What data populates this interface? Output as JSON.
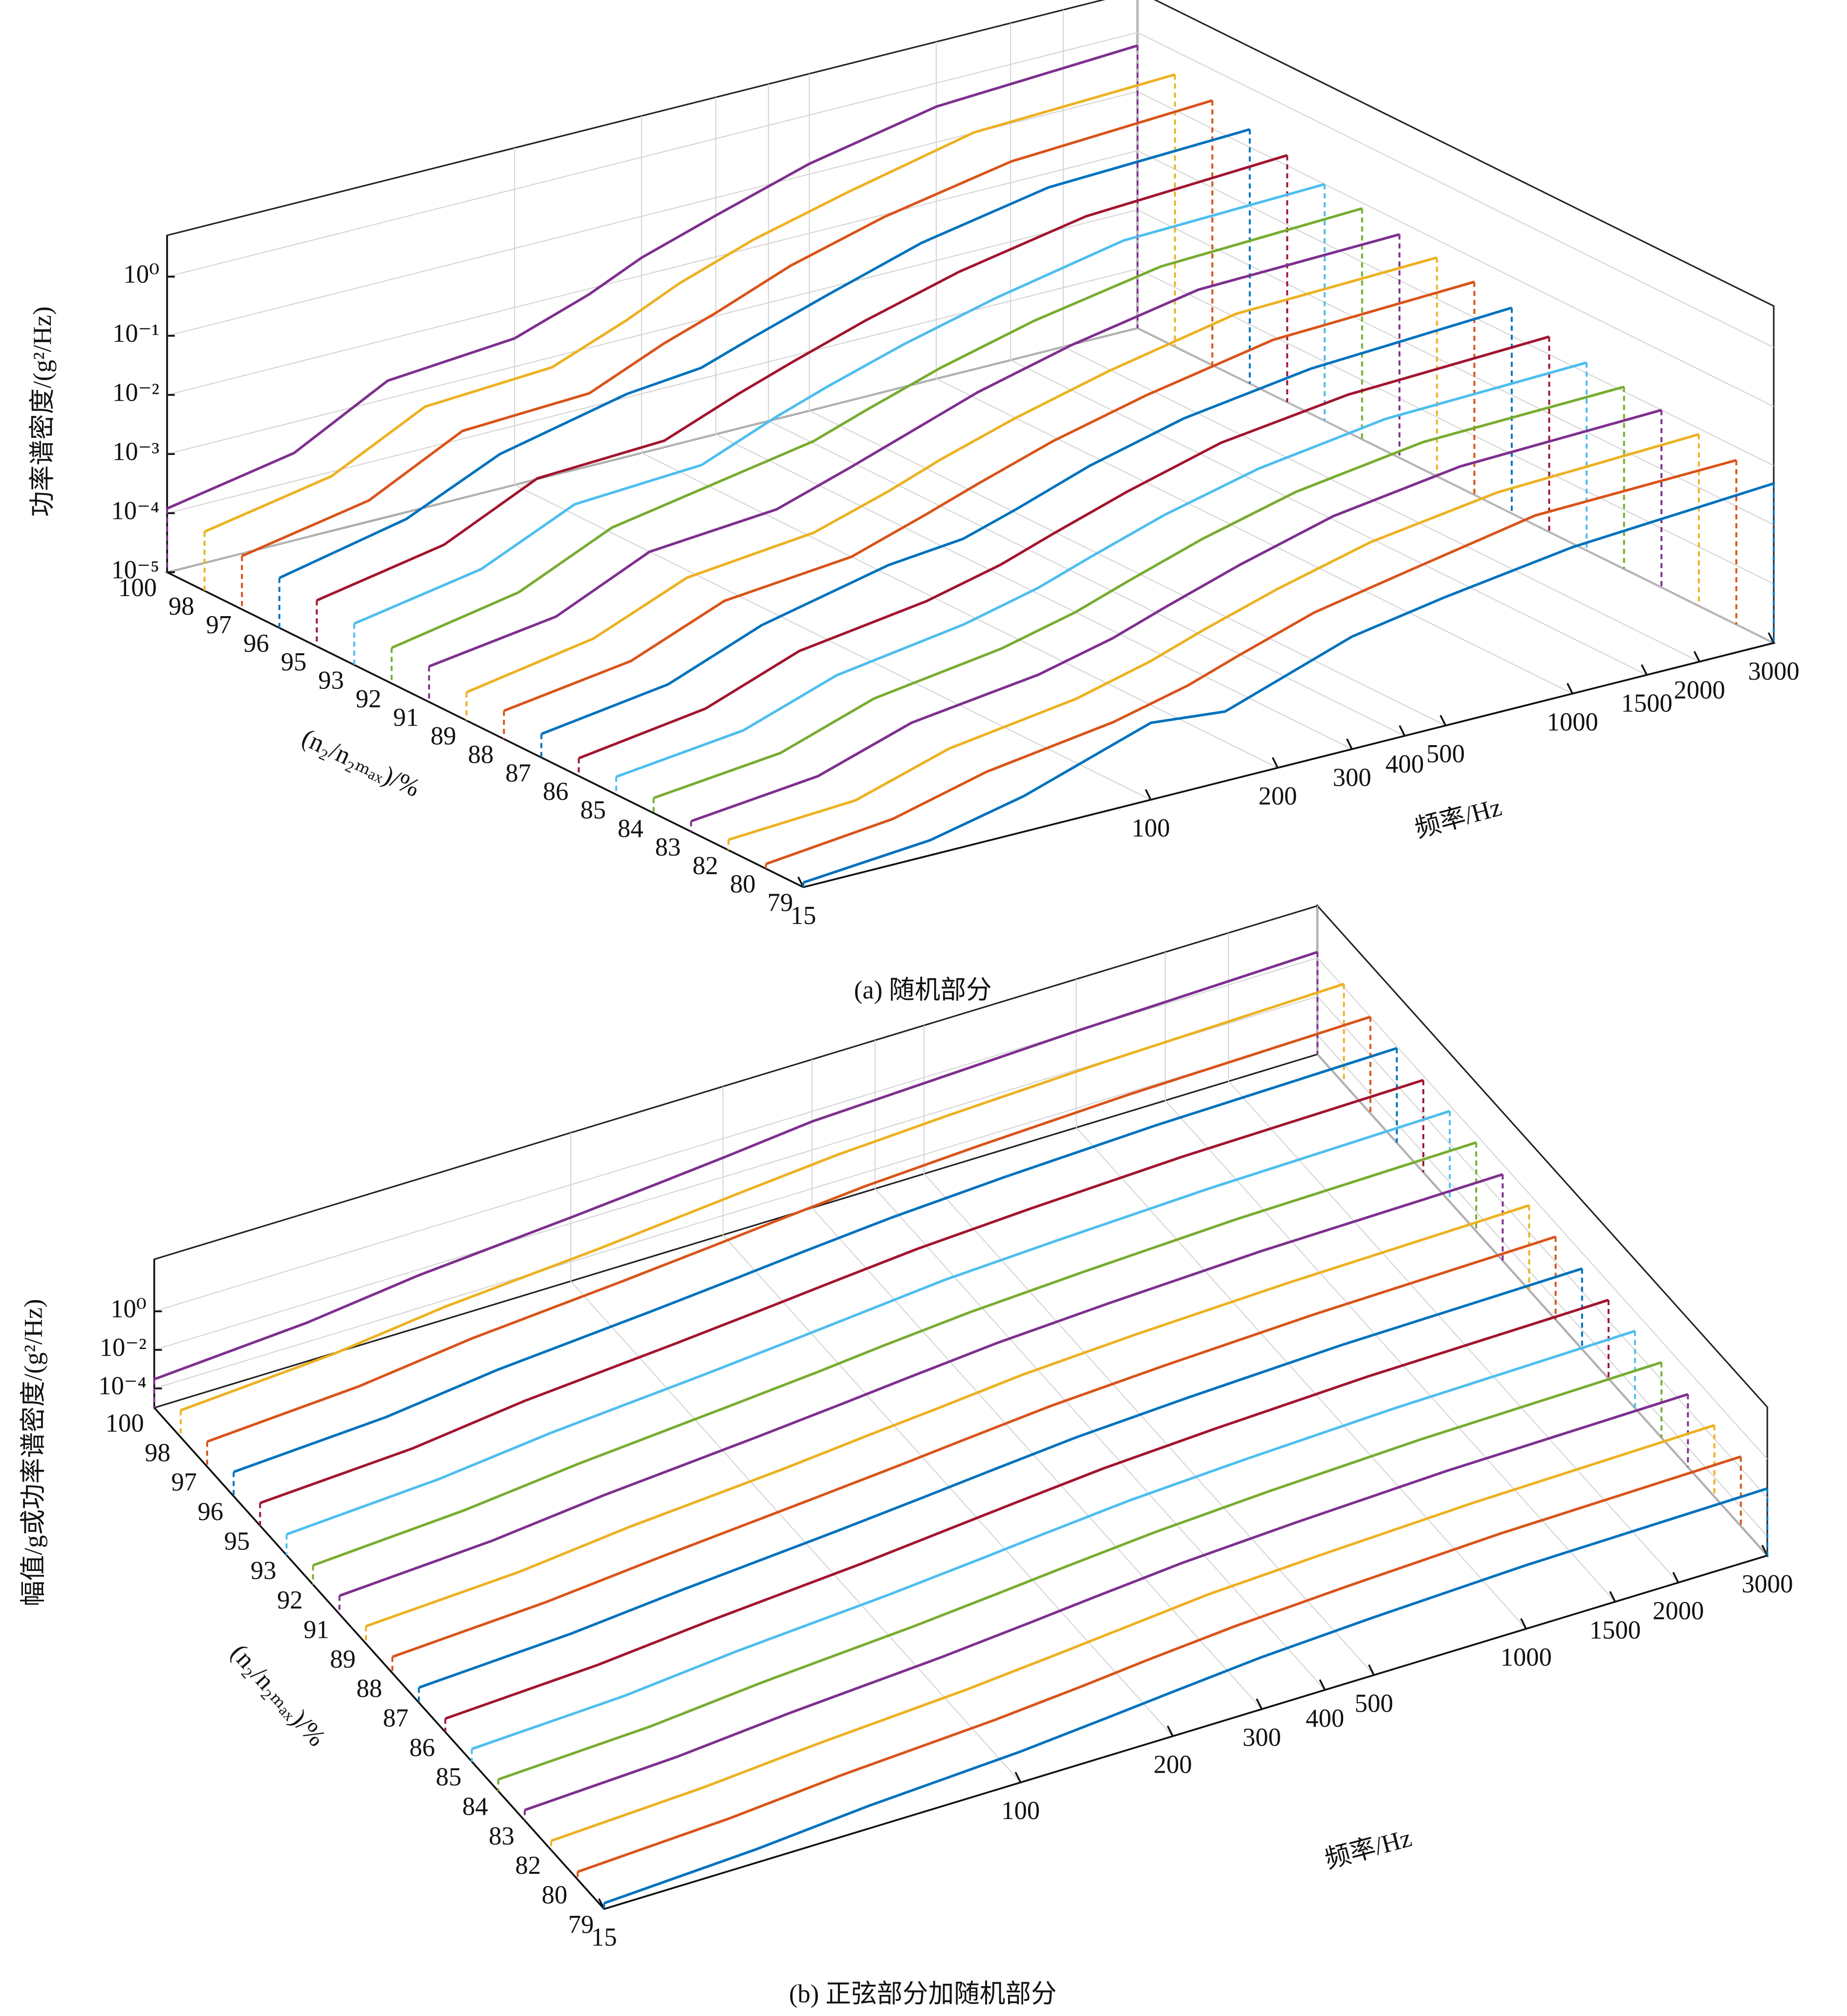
{
  "chart_data": [
    {
      "type": "waterfall",
      "caption": "(a) 随机部分",
      "xlabel": "频率/Hz",
      "ylabel": "功率谱密度/(g²/Hz)",
      "serieslabel": "(n₂/n₂ₘₐₓ)/%",
      "xscale": "log",
      "yscale": "log",
      "grid": true,
      "xlim": [
        15,
        3000
      ],
      "xticks": [
        15,
        100,
        200,
        300,
        400,
        500,
        1000,
        1500,
        2000,
        3000
      ],
      "ylim": [
        1e-05,
        5
      ],
      "yticks": [
        {
          "value": 1e-05,
          "label": "10⁻⁵"
        },
        {
          "value": 0.0001,
          "label": "10⁻⁴"
        },
        {
          "value": 0.001,
          "label": "10⁻³"
        },
        {
          "value": 0.01,
          "label": "10⁻²"
        },
        {
          "value": 0.1,
          "label": "10⁻¹"
        },
        {
          "value": 1,
          "label": "10⁰"
        }
      ],
      "categories": [
        "100",
        "98",
        "97",
        "96",
        "95",
        "93",
        "92",
        "91",
        "89",
        "88",
        "87",
        "86",
        "85",
        "84",
        "83",
        "82",
        "80",
        "79"
      ],
      "x": [
        15,
        30,
        50,
        100,
        150,
        200,
        300,
        500,
        1000,
        3000
      ],
      "series": [
        {
          "color": "#7e2f8e",
          "values": [
            0.00012,
            0.0003,
            0.002,
            0.003,
            0.008,
            0.02,
            0.05,
            0.15,
            0.4,
            0.6
          ]
        },
        {
          "color": "#edb120",
          "values": [
            0.0001,
            0.00025,
            0.0015,
            0.002,
            0.006,
            0.015,
            0.04,
            0.1,
            0.3,
            0.4
          ]
        },
        {
          "color": "#d95319",
          "values": [
            8e-05,
            0.0002,
            0.0012,
            0.0015,
            0.005,
            0.01,
            0.03,
            0.08,
            0.2,
            0.3
          ]
        },
        {
          "color": "#0072bd",
          "values": [
            7e-05,
            0.0002,
            0.001,
            0.003,
            0.004,
            0.008,
            0.02,
            0.06,
            0.15,
            0.2
          ]
        },
        {
          "color": "#a2142f",
          "values": [
            6e-05,
            0.00015,
            0.0008,
            0.001,
            0.003,
            0.006,
            0.015,
            0.04,
            0.1,
            0.15
          ]
        },
        {
          "color": "#4dbeee",
          "values": [
            5e-05,
            0.00012,
            0.0006,
            0.0008,
            0.0025,
            0.005,
            0.012,
            0.03,
            0.08,
            0.1
          ]
        },
        {
          "color": "#77ac30",
          "values": [
            4e-05,
            0.0001,
            0.0005,
            0.0012,
            0.002,
            0.004,
            0.01,
            0.025,
            0.06,
            0.08
          ]
        },
        {
          "color": "#7e2f8e",
          "values": [
            4e-05,
            8e-05,
            0.0004,
            0.0006,
            0.0015,
            0.003,
            0.008,
            0.02,
            0.05,
            0.06
          ]
        },
        {
          "color": "#edb120",
          "values": [
            3e-05,
            7e-05,
            0.0003,
            0.0005,
            0.0012,
            0.0025,
            0.006,
            0.015,
            0.04,
            0.05
          ]
        },
        {
          "color": "#d95319",
          "values": [
            3e-05,
            6e-05,
            0.00025,
            0.0004,
            0.001,
            0.002,
            0.005,
            0.012,
            0.03,
            0.04
          ]
        },
        {
          "color": "#0072bd",
          "values": [
            2.5e-05,
            5e-05,
            0.0002,
            0.0006,
            0.0008,
            0.0015,
            0.004,
            0.01,
            0.02,
            0.03
          ]
        },
        {
          "color": "#a2142f",
          "values": [
            2e-05,
            4e-05,
            0.00015,
            0.0003,
            0.0006,
            0.0012,
            0.003,
            0.008,
            0.015,
            0.02
          ]
        },
        {
          "color": "#4dbeee",
          "values": [
            2e-05,
            3.5e-05,
            0.00012,
            0.00025,
            0.0005,
            0.001,
            0.0025,
            0.006,
            0.012,
            0.015
          ]
        },
        {
          "color": "#77ac30",
          "values": [
            1.8e-05,
            3e-05,
            0.0001,
            0.0002,
            0.0004,
            0.0008,
            0.002,
            0.005,
            0.01,
            0.012
          ]
        },
        {
          "color": "#7e2f8e",
          "values": [
            1.5e-05,
            2.5e-05,
            8e-05,
            0.00015,
            0.0003,
            0.0006,
            0.0015,
            0.004,
            0.008,
            0.01
          ]
        },
        {
          "color": "#edb120",
          "values": [
            1.5e-05,
            2e-05,
            6e-05,
            0.00012,
            0.00025,
            0.0005,
            0.0012,
            0.003,
            0.006,
            0.008
          ]
        },
        {
          "color": "#d95319",
          "values": [
            1.2e-05,
            2e-05,
            5e-05,
            0.0001,
            0.0002,
            0.0004,
            0.001,
            0.002,
            0.005,
            0.006
          ]
        },
        {
          "color": "#0072bd",
          "values": [
            1.2e-05,
            1.8e-05,
            4e-05,
            0.0002,
            0.00015,
            0.0003,
            0.0008,
            0.0015,
            0.003,
            0.005
          ]
        }
      ]
    },
    {
      "type": "waterfall",
      "caption": "(b) 正弦部分加随机部分",
      "xlabel": "频率/Hz",
      "ylabel": "幅值/g或功率谱密度/(g²/Hz)",
      "serieslabel": "(n₂/n₂ₘₐₓ)/%",
      "xscale": "log",
      "yscale": "log",
      "grid": true,
      "xlim": [
        15,
        3000
      ],
      "xticks": [
        15,
        100,
        200,
        300,
        400,
        500,
        1000,
        1500,
        2000,
        3000
      ],
      "ylim": [
        1e-05,
        500
      ],
      "yticks": [
        {
          "value": 0.0001,
          "label": "10⁻⁴"
        },
        {
          "value": 0.01,
          "label": "10⁻²"
        },
        {
          "value": 1,
          "label": "10⁰"
        }
      ],
      "categories": [
        "100",
        "98",
        "97",
        "96",
        "95",
        "93",
        "92",
        "91",
        "89",
        "88",
        "87",
        "86",
        "85",
        "84",
        "83",
        "82",
        "80",
        "79"
      ],
      "x": [
        15,
        30,
        50,
        100,
        150,
        200,
        300,
        500,
        1000,
        3000
      ],
      "series": [
        {
          "color": "#7e2f8e",
          "values": [
            0.0003,
            0.001,
            0.005,
            0.02,
            0.05,
            0.1,
            0.3,
            0.5,
            1,
            2
          ]
        },
        {
          "color": "#edb120",
          "values": [
            0.00025,
            0.0008,
            0.004,
            0.015,
            0.04,
            0.08,
            0.2,
            0.4,
            0.8,
            1.5
          ]
        },
        {
          "color": "#d95319",
          "values": [
            0.0002,
            0.0006,
            0.003,
            0.012,
            0.03,
            0.06,
            0.15,
            0.3,
            0.6,
            1
          ]
        },
        {
          "color": "#0072bd",
          "values": [
            0.00018,
            0.0005,
            0.0025,
            0.01,
            0.025,
            0.05,
            0.12,
            0.25,
            0.5,
            0.8
          ]
        },
        {
          "color": "#a2142f",
          "values": [
            0.00015,
            0.0004,
            0.002,
            0.008,
            0.02,
            0.04,
            0.1,
            0.2,
            0.4,
            0.6
          ]
        },
        {
          "color": "#4dbeee",
          "values": [
            0.00012,
            0.00035,
            0.0015,
            0.006,
            0.015,
            0.03,
            0.08,
            0.15,
            0.3,
            0.5
          ]
        },
        {
          "color": "#77ac30",
          "values": [
            0.0001,
            0.0003,
            0.0012,
            0.005,
            0.012,
            0.025,
            0.06,
            0.12,
            0.25,
            0.4
          ]
        },
        {
          "color": "#7e2f8e",
          "values": [
            9e-05,
            0.00025,
            0.001,
            0.004,
            0.01,
            0.02,
            0.05,
            0.1,
            0.2,
            0.3
          ]
        },
        {
          "color": "#edb120",
          "values": [
            8e-05,
            0.0002,
            0.0008,
            0.003,
            0.008,
            0.015,
            0.04,
            0.08,
            0.15,
            0.25
          ]
        },
        {
          "color": "#d95319",
          "values": [
            7e-05,
            0.00018,
            0.0006,
            0.0025,
            0.006,
            0.012,
            0.03,
            0.06,
            0.12,
            0.2
          ]
        },
        {
          "color": "#0072bd",
          "values": [
            6e-05,
            0.00015,
            0.0005,
            0.002,
            0.005,
            0.01,
            0.025,
            0.05,
            0.1,
            0.15
          ]
        },
        {
          "color": "#a2142f",
          "values": [
            5e-05,
            0.00012,
            0.0004,
            0.0015,
            0.004,
            0.008,
            0.02,
            0.04,
            0.08,
            0.12
          ]
        },
        {
          "color": "#4dbeee",
          "values": [
            4.5e-05,
            0.0001,
            0.00035,
            0.0012,
            0.003,
            0.006,
            0.015,
            0.03,
            0.06,
            0.1
          ]
        },
        {
          "color": "#77ac30",
          "values": [
            4e-05,
            9e-05,
            0.0003,
            0.001,
            0.0025,
            0.005,
            0.012,
            0.025,
            0.05,
            0.08
          ]
        },
        {
          "color": "#7e2f8e",
          "values": [
            3.5e-05,
            8e-05,
            0.00025,
            0.0008,
            0.002,
            0.004,
            0.01,
            0.02,
            0.04,
            0.06
          ]
        },
        {
          "color": "#edb120",
          "values": [
            3e-05,
            7e-05,
            0.0002,
            0.0006,
            0.0015,
            0.003,
            0.008,
            0.015,
            0.03,
            0.05
          ]
        },
        {
          "color": "#d95319",
          "values": [
            2.5e-05,
            6e-05,
            0.00018,
            0.0005,
            0.0012,
            0.0025,
            0.006,
            0.012,
            0.025,
            0.04
          ]
        },
        {
          "color": "#0072bd",
          "values": [
            2e-05,
            5e-05,
            0.00015,
            0.0004,
            0.001,
            0.002,
            0.005,
            0.01,
            0.02,
            0.03
          ]
        }
      ]
    }
  ]
}
